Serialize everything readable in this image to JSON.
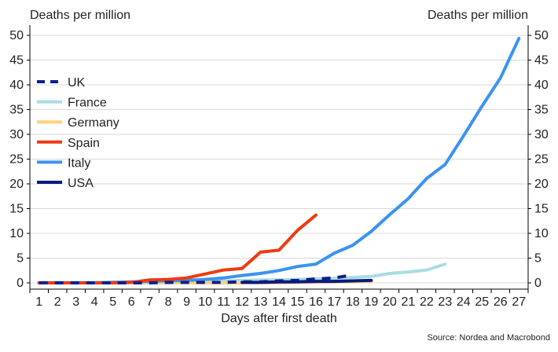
{
  "chart_data": {
    "type": "line",
    "ylabel_left": "Deaths per million",
    "ylabel_right": "Deaths per million",
    "xlabel": "Days after first death",
    "source": "Source: Nordea and Macrobond",
    "xlim": [
      1,
      27
    ],
    "ylim": [
      0,
      50
    ],
    "x_ticks": [
      1,
      2,
      3,
      4,
      5,
      6,
      7,
      8,
      9,
      10,
      11,
      12,
      13,
      14,
      15,
      16,
      17,
      18,
      19,
      20,
      21,
      22,
      23,
      24,
      25,
      26,
      27
    ],
    "y_ticks": [
      0,
      5,
      10,
      15,
      20,
      25,
      30,
      35,
      40,
      45,
      50
    ],
    "grid": "horizontal",
    "legend_position": "left",
    "series": [
      {
        "name": "France",
        "color": "#a8dce4",
        "style": "solid",
        "x": [
          1,
          2,
          3,
          4,
          5,
          6,
          7,
          8,
          9,
          10,
          11,
          12,
          13,
          14,
          15,
          16,
          17,
          18,
          19,
          20,
          21,
          22,
          23
        ],
        "y": [
          0.1,
          0.1,
          0.1,
          0.1,
          0.1,
          0.1,
          0.1,
          0.2,
          0.3,
          0.4,
          0.4,
          0.5,
          0.6,
          0.6,
          0.7,
          0.8,
          0.9,
          1.1,
          1.3,
          1.9,
          2.2,
          2.6,
          3.8
        ]
      },
      {
        "name": "Germany",
        "color": "#ffd27a",
        "style": "solid",
        "x": [
          1,
          2,
          3,
          4,
          5,
          6,
          7,
          8,
          9,
          10,
          11,
          12,
          13,
          14,
          15,
          16,
          17,
          18,
          19
        ],
        "y": [
          0,
          0,
          0,
          0,
          0,
          0,
          0,
          0,
          0,
          0,
          0,
          0,
          0,
          0,
          0.1,
          0.1,
          0.2,
          0.2,
          0.3
        ]
      },
      {
        "name": "Italy",
        "color": "#3b93f0",
        "style": "solid",
        "x": [
          1,
          2,
          3,
          4,
          5,
          6,
          7,
          8,
          9,
          10,
          11,
          12,
          13,
          14,
          15,
          16,
          17,
          18,
          19,
          20,
          21,
          22,
          23,
          24,
          25,
          26,
          27
        ],
        "y": [
          0,
          0,
          0,
          0,
          0.1,
          0.2,
          0.3,
          0.4,
          0.5,
          0.7,
          1.0,
          1.5,
          1.9,
          2.5,
          3.3,
          3.8,
          6.0,
          7.6,
          10.4,
          13.8,
          17.0,
          21.1,
          23.9,
          29.7,
          35.7,
          41.4,
          49.4
        ]
      },
      {
        "name": "Spain",
        "color": "#ee3a12",
        "style": "solid",
        "x": [
          1,
          2,
          3,
          4,
          5,
          6,
          7,
          8,
          9,
          10,
          11,
          12,
          13,
          14,
          15,
          16
        ],
        "y": [
          0,
          0,
          0,
          0,
          0,
          0.1,
          0.6,
          0.7,
          1.0,
          1.8,
          2.6,
          2.9,
          6.2,
          6.6,
          10.6,
          13.7
        ]
      },
      {
        "name": "UK",
        "color": "#0d1f8c",
        "style": "dashed",
        "x": [
          1,
          2,
          3,
          4,
          5,
          6,
          7,
          8,
          9,
          10,
          11,
          12,
          13,
          14,
          15,
          16,
          17,
          18
        ],
        "y": [
          0,
          0,
          0,
          0,
          0,
          0,
          0,
          0.1,
          0.1,
          0.1,
          0.1,
          0.2,
          0.2,
          0.4,
          0.5,
          0.8,
          1.0,
          1.6
        ]
      },
      {
        "name": "USA",
        "color": "#061a80",
        "style": "solid",
        "x": [
          12,
          13,
          14,
          15,
          16,
          17,
          18,
          19
        ],
        "y": [
          0.1,
          0.1,
          0.2,
          0.2,
          0.3,
          0.3,
          0.4,
          0.5
        ]
      }
    ],
    "legend_order": [
      "UK",
      "France",
      "Germany",
      "Spain",
      "Italy",
      "USA"
    ]
  }
}
